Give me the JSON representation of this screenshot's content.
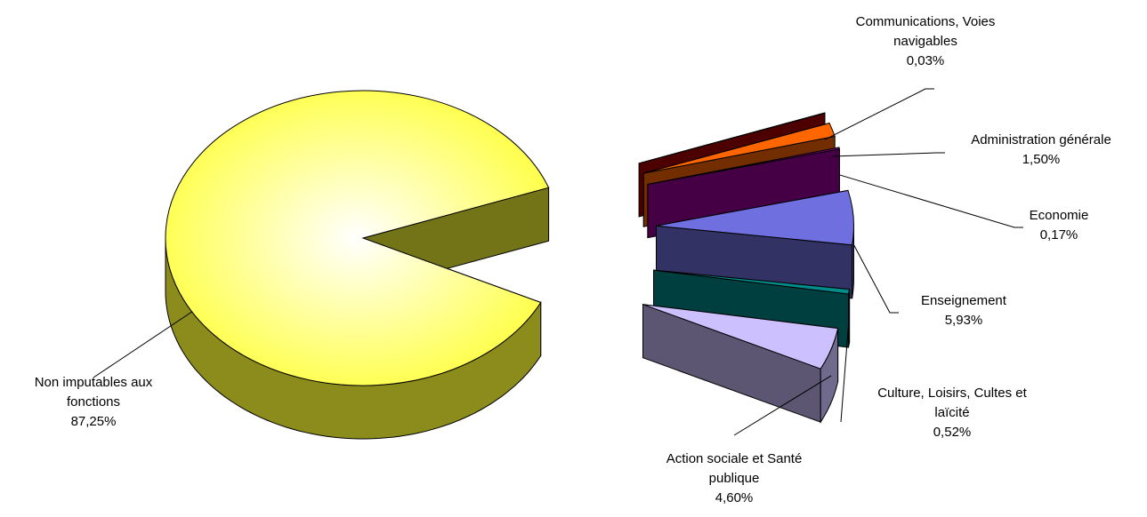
{
  "chart_data": {
    "type": "pie",
    "categories": [
      "Communications, Voies navigables",
      "Administration générale",
      "Economie",
      "Enseignement",
      "Culture, Loisirs, Cultes et laïcité",
      "Action sociale et Santé publique",
      "Non imputables aux fonctions"
    ],
    "values": [
      0.03,
      1.5,
      0.17,
      5.93,
      0.52,
      4.6,
      87.25
    ],
    "value_labels": [
      "0,03%",
      "1,50%",
      "0,17%",
      "5,93%",
      "0,52%",
      "4,60%",
      "87,25%"
    ],
    "colors": [
      "#aa0000",
      "#ff6600",
      "#990099",
      "#6f6fe0",
      "#008b8b",
      "#ccc0ff",
      "#ffff33"
    ]
  }
}
